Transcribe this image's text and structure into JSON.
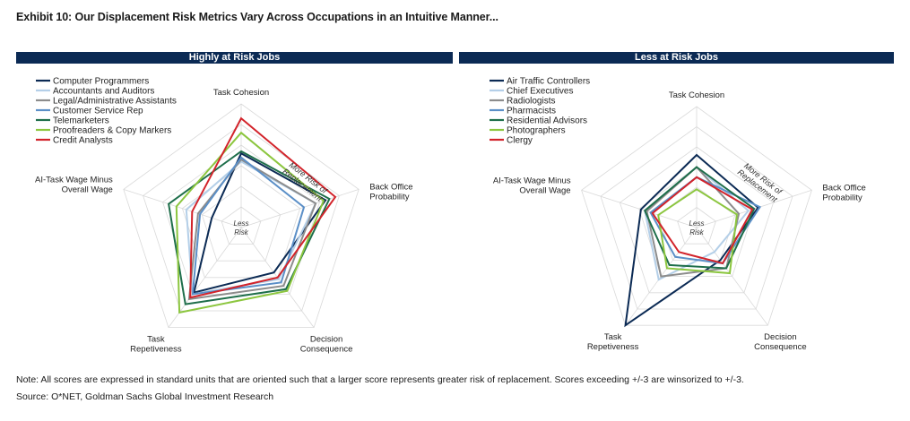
{
  "title": "Exhibit 10: Our Displacement Risk Metrics Vary Across Occupations in an Intuitive Manner...",
  "note": "Note: All scores are expressed in standard units that are oriented such that a larger score represents greater risk of replacement. Scores exceeding +/-3 are winsorized to +/-3.",
  "source": "Source: O*NET, Goldman Sachs Global Investment Research",
  "center_label": [
    "Less",
    "Risk"
  ],
  "arrow_label": [
    "More Risk of",
    "Replacement"
  ],
  "axis_labels": [
    [
      "Task Cohesion"
    ],
    [
      "Back Office",
      "Probability"
    ],
    [
      "Decision",
      "Consequence"
    ],
    [
      "Task",
      "Repetiveness"
    ],
    [
      "AI-Task Wage Minus",
      "Overall Wage"
    ]
  ],
  "chart_data": [
    {
      "type": "radar",
      "title": "Highly at Risk Jobs",
      "axes": [
        "Task Cohesion",
        "Back Office Probability",
        "Decision Consequence",
        "Task Repetiveness",
        "AI-Task Wage Minus Overall Wage"
      ],
      "range": [
        -3,
        3
      ],
      "rings": 6,
      "series": [
        {
          "name": "Computer Programmers",
          "color": "#0b2a54",
          "values": [
            0.6,
            1.3,
            -0.3,
            0.9,
            -1.5
          ]
        },
        {
          "name": "Accountants and Auditors",
          "color": "#b4cfe8",
          "values": [
            0.2,
            0.8,
            0.1,
            1.0,
            -0.2
          ]
        },
        {
          "name": "Legal/Administrative Assistants",
          "color": "#8c8c8c",
          "values": [
            0.3,
            0.8,
            0.5,
            1.3,
            -0.8
          ]
        },
        {
          "name": "Customer Service Rep",
          "color": "#5b8fc7",
          "values": [
            0.4,
            0.2,
            0.3,
            1.0,
            -0.9
          ]
        },
        {
          "name": "Telemarketers",
          "color": "#1e6e4a",
          "values": [
            0.7,
            1.5,
            0.7,
            1.6,
            0.7
          ]
        },
        {
          "name": "Proofreaders & Copy Markers",
          "color": "#8cc63f",
          "values": [
            1.6,
            1.2,
            0.8,
            2.1,
            0.3
          ]
        },
        {
          "name": "Credit Analysts",
          "color": "#d2232a",
          "values": [
            2.3,
            1.8,
            0.0,
            1.2,
            -0.5
          ]
        }
      ]
    },
    {
      "type": "radar",
      "title": "Less at Risk Jobs",
      "axes": [
        "Task Cohesion",
        "Back Office Probability",
        "Decision Consequence",
        "Task Repetiveness",
        "AI-Task Wage Minus Overall Wage"
      ],
      "range": [
        -3,
        3
      ],
      "rings": 6,
      "series": [
        {
          "name": "Air Traffic Controllers",
          "color": "#0b2a54",
          "values": [
            0.6,
            0.2,
            -1.0,
            3.0,
            -0.1
          ]
        },
        {
          "name": "Chief Executives",
          "color": "#b4cfe8",
          "values": [
            0.0,
            -0.3,
            -1.5,
            0.2,
            -0.3
          ]
        },
        {
          "name": "Radiologists",
          "color": "#8c8c8c",
          "values": [
            0.0,
            -0.8,
            -0.5,
            0.0,
            -0.4
          ]
        },
        {
          "name": "Pharmacists",
          "color": "#5b8fc7",
          "values": [
            -0.5,
            0.3,
            -0.8,
            -1.2,
            -0.6
          ]
        },
        {
          "name": "Residential Advisors",
          "color": "#1e6e4a",
          "values": [
            0.0,
            0.0,
            -0.5,
            -0.7,
            -0.3
          ]
        },
        {
          "name": "Photographers",
          "color": "#8cc63f",
          "values": [
            -1.1,
            -0.9,
            -0.2,
            -0.5,
            -1.0
          ]
        },
        {
          "name": "Clergy",
          "color": "#d2232a",
          "values": [
            -0.5,
            -0.1,
            -0.8,
            -1.5,
            -0.7
          ]
        }
      ]
    }
  ]
}
